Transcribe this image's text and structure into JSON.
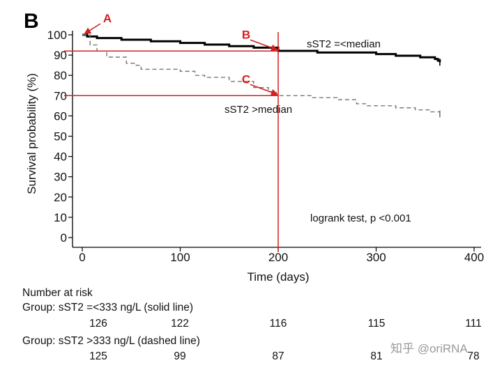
{
  "panel_label": "B",
  "watermark": "知乎 @oriRNA",
  "chart_data": {
    "type": "line",
    "subtype": "kaplan-meier",
    "xlabel": "Time (days)",
    "ylabel": "Survival probability (%)",
    "xlim": [
      0,
      400
    ],
    "ylim": [
      0,
      100
    ],
    "x_ticks": [
      0,
      100,
      200,
      300,
      400
    ],
    "y_ticks": [
      0,
      10,
      20,
      30,
      40,
      50,
      60,
      70,
      80,
      90,
      100
    ],
    "grid": false,
    "series": [
      {
        "name": "sST2 =<median",
        "style": "solid",
        "color": "#000000",
        "points": [
          [
            0,
            100
          ],
          [
            5,
            99.2
          ],
          [
            15,
            98.4
          ],
          [
            40,
            97.6
          ],
          [
            70,
            96.8
          ],
          [
            100,
            96.0
          ],
          [
            125,
            95.2
          ],
          [
            150,
            94.4
          ],
          [
            175,
            93.7
          ],
          [
            200,
            92.1
          ],
          [
            240,
            91.3
          ],
          [
            300,
            90.5
          ],
          [
            320,
            89.7
          ],
          [
            345,
            88.9
          ],
          [
            360,
            88.1
          ],
          [
            363,
            87.3
          ],
          [
            365,
            86.5
          ]
        ]
      },
      {
        "name": "sST2 >median",
        "style": "dashed",
        "color": "#777777",
        "points": [
          [
            0,
            100
          ],
          [
            8,
            95
          ],
          [
            15,
            92
          ],
          [
            25,
            89
          ],
          [
            45,
            86
          ],
          [
            55,
            85
          ],
          [
            60,
            83
          ],
          [
            100,
            82
          ],
          [
            115,
            80
          ],
          [
            125,
            79
          ],
          [
            150,
            77
          ],
          [
            175,
            74
          ],
          [
            190,
            72
          ],
          [
            198,
            70
          ],
          [
            235,
            69
          ],
          [
            260,
            68
          ],
          [
            280,
            66
          ],
          [
            290,
            65
          ],
          [
            320,
            64
          ],
          [
            340,
            63
          ],
          [
            355,
            62
          ],
          [
            365,
            61
          ]
        ]
      }
    ],
    "annotations": {
      "series_label_1": "sST2 =<median",
      "series_label_2": "sST2 >median",
      "test": "logrank test, p <0.001"
    },
    "reference_lines": {
      "x": 200,
      "y_values": [
        92,
        70
      ]
    },
    "markers": [
      {
        "label": "A",
        "x": 0,
        "y": 100
      },
      {
        "label": "B",
        "x": 200,
        "y": 92
      },
      {
        "label": "C",
        "x": 200,
        "y": 70
      }
    ],
    "risk_table": {
      "title": "Number at risk",
      "groups": [
        {
          "label": "Group: sST2 =<333 ng/L (solid line)",
          "values": [
            126,
            122,
            116,
            115,
            111
          ]
        },
        {
          "label": "Group: sST2 >333 ng/L (dashed line)",
          "values": [
            125,
            99,
            87,
            81,
            78
          ]
        }
      ]
    }
  }
}
